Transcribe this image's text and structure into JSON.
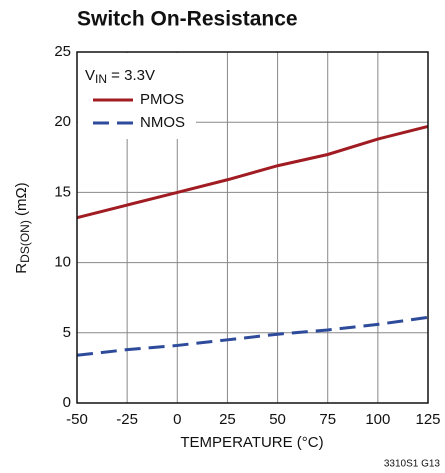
{
  "chart_data": {
    "type": "line",
    "title": "Switch On-Resistance",
    "ylabel": [
      "R",
      "DS(ON)",
      " (mΩ)"
    ],
    "xlabel": "TEMPERATURE (°C)",
    "annotation": [
      "V",
      "IN",
      " = 3.3V"
    ],
    "footnote": "3310S1 G13",
    "x": [
      -50,
      -25,
      0,
      25,
      50,
      75,
      100,
      125
    ],
    "series": [
      {
        "name": "PMOS",
        "color": "#a01c22",
        "dash": false,
        "values": [
          13.2,
          14.1,
          15.0,
          15.9,
          16.9,
          17.7,
          18.8,
          19.7
        ]
      },
      {
        "name": "NMOS",
        "color": "#2e4b9b",
        "dash": true,
        "values": [
          3.4,
          3.8,
          4.1,
          4.5,
          4.9,
          5.2,
          5.6,
          6.1
        ]
      }
    ],
    "xlim": [
      -50,
      125
    ],
    "xticks": [
      -50,
      -25,
      0,
      25,
      50,
      75,
      100,
      125
    ],
    "ylim": [
      0,
      25
    ],
    "yticks": [
      0,
      5,
      10,
      15,
      20,
      25
    ],
    "grid": true,
    "legend": "upper left"
  }
}
